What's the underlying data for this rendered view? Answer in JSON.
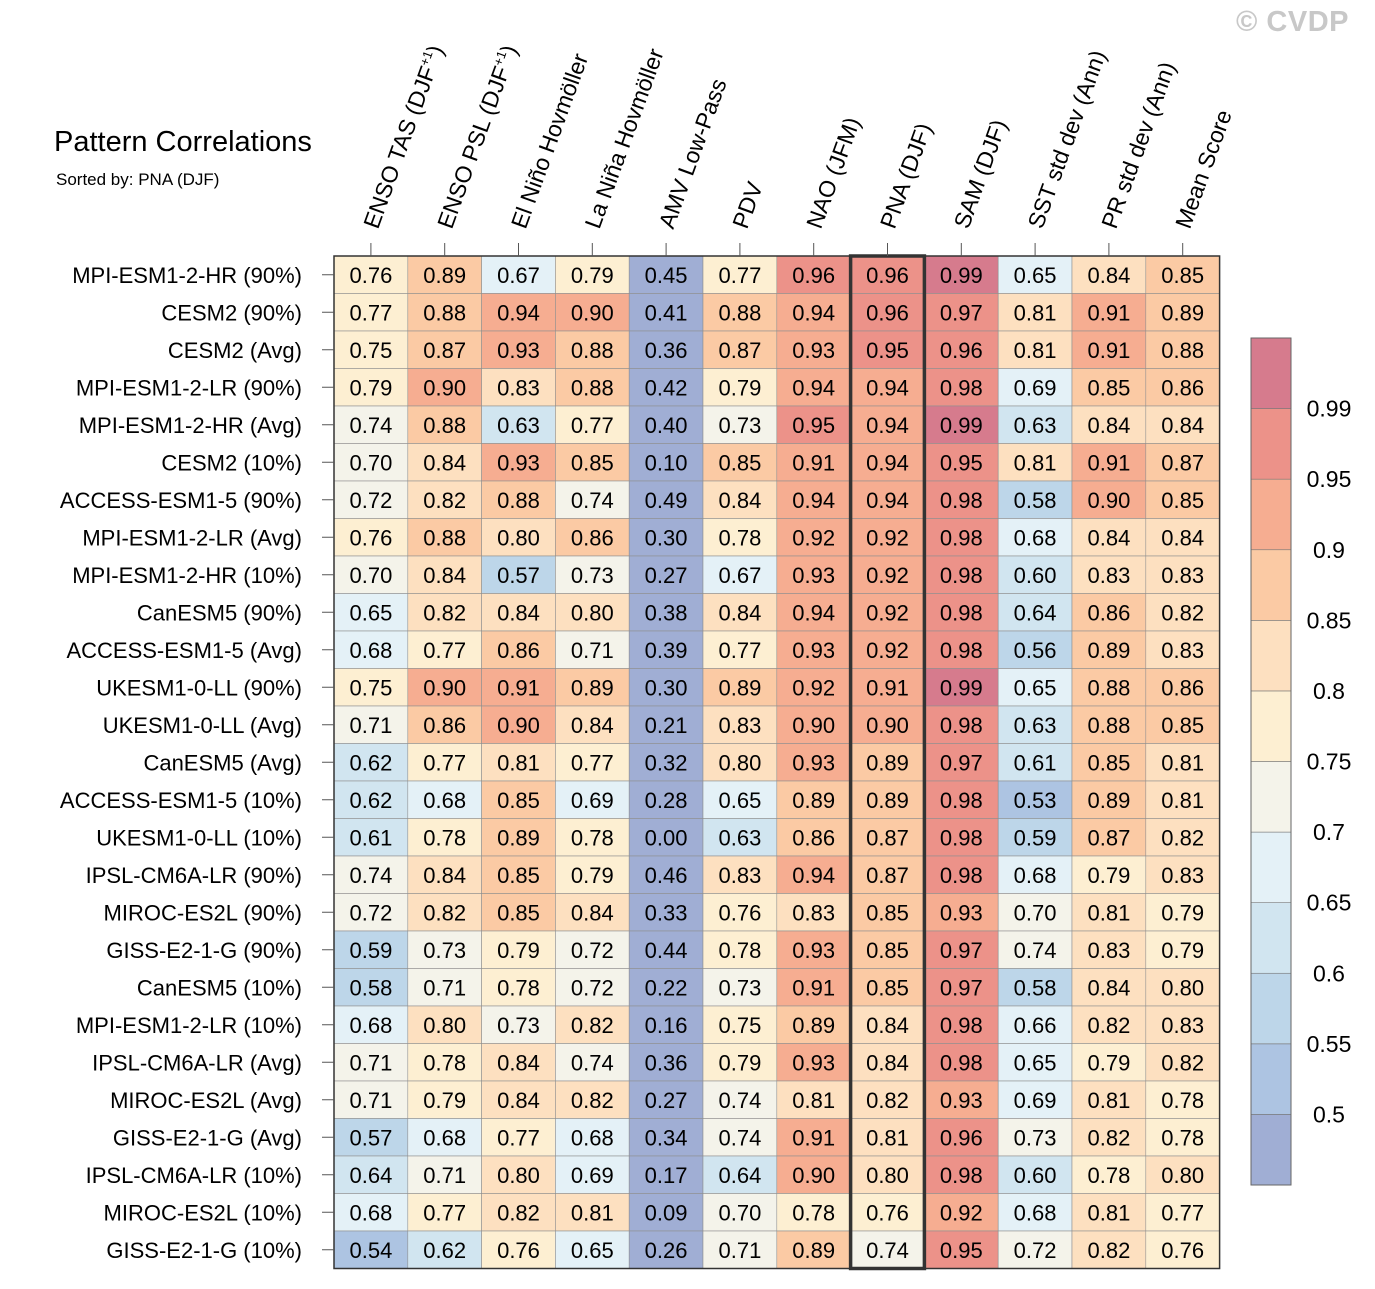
{
  "title": "Pattern Correlations",
  "subtitle": "Sorted by: PNA (DJF)",
  "watermark": "© CVDP",
  "chart_data": {
    "type": "heatmap",
    "title": "Pattern Correlations",
    "subtitle": "Sorted by: PNA (DJF)",
    "columns": [
      {
        "text": "ENSO TAS (DJF",
        "sup": "+1",
        "suffix": ")"
      },
      {
        "text": "ENSO PSL (DJF",
        "sup": "+1",
        "suffix": ")"
      },
      {
        "text": "El Niño Hovmöller"
      },
      {
        "text": "La Niña Hovmöller"
      },
      {
        "text": "AMV Low-Pass"
      },
      {
        "text": "PDV"
      },
      {
        "text": "NAO (JFM)"
      },
      {
        "text": "PNA (DJF)"
      },
      {
        "text": "SAM (DJF)"
      },
      {
        "text": "SST std dev (Ann)"
      },
      {
        "text": "PR std dev (Ann)"
      },
      {
        "text": "Mean Score"
      }
    ],
    "highlighted_column": "PNA (DJF)",
    "rows": [
      "MPI-ESM1-2-HR (90%)",
      "CESM2 (90%)",
      "CESM2 (Avg)",
      "MPI-ESM1-2-LR (90%)",
      "MPI-ESM1-2-HR (Avg)",
      "CESM2 (10%)",
      "ACCESS-ESM1-5 (90%)",
      "MPI-ESM1-2-LR (Avg)",
      "MPI-ESM1-2-HR (10%)",
      "CanESM5 (90%)",
      "ACCESS-ESM1-5 (Avg)",
      "UKESM1-0-LL (90%)",
      "UKESM1-0-LL (Avg)",
      "CanESM5 (Avg)",
      "ACCESS-ESM1-5 (10%)",
      "UKESM1-0-LL (10%)",
      "IPSL-CM6A-LR (90%)",
      "MIROC-ES2L (90%)",
      "GISS-E2-1-G (90%)",
      "CanESM5 (10%)",
      "MPI-ESM1-2-LR (10%)",
      "IPSL-CM6A-LR (Avg)",
      "MIROC-ES2L (Avg)",
      "GISS-E2-1-G (Avg)",
      "IPSL-CM6A-LR (10%)",
      "MIROC-ES2L (10%)",
      "GISS-E2-1-G (10%)"
    ],
    "values": [
      [
        "0.76",
        "0.89",
        "0.67",
        "0.79",
        "0.45",
        "0.77",
        "0.96",
        "0.96",
        "0.99",
        "0.65",
        "0.84",
        "0.85"
      ],
      [
        "0.77",
        "0.88",
        "0.94",
        "0.90",
        "0.41",
        "0.88",
        "0.94",
        "0.96",
        "0.97",
        "0.81",
        "0.91",
        "0.89"
      ],
      [
        "0.75",
        "0.87",
        "0.93",
        "0.88",
        "0.36",
        "0.87",
        "0.93",
        "0.95",
        "0.96",
        "0.81",
        "0.91",
        "0.88"
      ],
      [
        "0.79",
        "0.90",
        "0.83",
        "0.88",
        "0.42",
        "0.79",
        "0.94",
        "0.94",
        "0.98",
        "0.69",
        "0.85",
        "0.86"
      ],
      [
        "0.74",
        "0.88",
        "0.63",
        "0.77",
        "0.40",
        "0.73",
        "0.95",
        "0.94",
        "0.99",
        "0.63",
        "0.84",
        "0.84"
      ],
      [
        "0.70",
        "0.84",
        "0.93",
        "0.85",
        "0.10",
        "0.85",
        "0.91",
        "0.94",
        "0.95",
        "0.81",
        "0.91",
        "0.87"
      ],
      [
        "0.72",
        "0.82",
        "0.88",
        "0.74",
        "0.49",
        "0.84",
        "0.94",
        "0.94",
        "0.98",
        "0.58",
        "0.90",
        "0.85"
      ],
      [
        "0.76",
        "0.88",
        "0.80",
        "0.86",
        "0.30",
        "0.78",
        "0.92",
        "0.92",
        "0.98",
        "0.68",
        "0.84",
        "0.84"
      ],
      [
        "0.70",
        "0.84",
        "0.57",
        "0.73",
        "0.27",
        "0.67",
        "0.93",
        "0.92",
        "0.98",
        "0.60",
        "0.83",
        "0.83"
      ],
      [
        "0.65",
        "0.82",
        "0.84",
        "0.80",
        "0.38",
        "0.84",
        "0.94",
        "0.92",
        "0.98",
        "0.64",
        "0.86",
        "0.82"
      ],
      [
        "0.68",
        "0.77",
        "0.86",
        "0.71",
        "0.39",
        "0.77",
        "0.93",
        "0.92",
        "0.98",
        "0.56",
        "0.89",
        "0.83"
      ],
      [
        "0.75",
        "0.90",
        "0.91",
        "0.89",
        "0.30",
        "0.89",
        "0.92",
        "0.91",
        "0.99",
        "0.65",
        "0.88",
        "0.86"
      ],
      [
        "0.71",
        "0.86",
        "0.90",
        "0.84",
        "0.21",
        "0.83",
        "0.90",
        "0.90",
        "0.98",
        "0.63",
        "0.88",
        "0.85"
      ],
      [
        "0.62",
        "0.77",
        "0.81",
        "0.77",
        "0.32",
        "0.80",
        "0.93",
        "0.89",
        "0.97",
        "0.61",
        "0.85",
        "0.81"
      ],
      [
        "0.62",
        "0.68",
        "0.85",
        "0.69",
        "0.28",
        "0.65",
        "0.89",
        "0.89",
        "0.98",
        "0.53",
        "0.89",
        "0.81"
      ],
      [
        "0.61",
        "0.78",
        "0.89",
        "0.78",
        "0.00",
        "0.63",
        "0.86",
        "0.87",
        "0.98",
        "0.59",
        "0.87",
        "0.82"
      ],
      [
        "0.74",
        "0.84",
        "0.85",
        "0.79",
        "0.46",
        "0.83",
        "0.94",
        "0.87",
        "0.98",
        "0.68",
        "0.79",
        "0.83"
      ],
      [
        "0.72",
        "0.82",
        "0.85",
        "0.84",
        "0.33",
        "0.76",
        "0.83",
        "0.85",
        "0.93",
        "0.70",
        "0.81",
        "0.79"
      ],
      [
        "0.59",
        "0.73",
        "0.79",
        "0.72",
        "0.44",
        "0.78",
        "0.93",
        "0.85",
        "0.97",
        "0.74",
        "0.83",
        "0.79"
      ],
      [
        "0.58",
        "0.71",
        "0.78",
        "0.72",
        "0.22",
        "0.73",
        "0.91",
        "0.85",
        "0.97",
        "0.58",
        "0.84",
        "0.80"
      ],
      [
        "0.68",
        "0.80",
        "0.73",
        "0.82",
        "0.16",
        "0.75",
        "0.89",
        "0.84",
        "0.98",
        "0.66",
        "0.82",
        "0.83"
      ],
      [
        "0.71",
        "0.78",
        "0.84",
        "0.74",
        "0.36",
        "0.79",
        "0.93",
        "0.84",
        "0.98",
        "0.65",
        "0.79",
        "0.82"
      ],
      [
        "0.71",
        "0.79",
        "0.84",
        "0.82",
        "0.27",
        "0.74",
        "0.81",
        "0.82",
        "0.93",
        "0.69",
        "0.81",
        "0.78"
      ],
      [
        "0.57",
        "0.68",
        "0.77",
        "0.68",
        "0.34",
        "0.74",
        "0.91",
        "0.81",
        "0.96",
        "0.73",
        "0.82",
        "0.78"
      ],
      [
        "0.64",
        "0.71",
        "0.80",
        "0.69",
        "0.17",
        "0.64",
        "0.90",
        "0.80",
        "0.98",
        "0.60",
        "0.78",
        "0.80"
      ],
      [
        "0.68",
        "0.77",
        "0.82",
        "0.81",
        "0.09",
        "0.70",
        "0.78",
        "0.76",
        "0.92",
        "0.68",
        "0.81",
        "0.77"
      ],
      [
        "0.54",
        "0.62",
        "0.76",
        "0.65",
        "0.26",
        "0.71",
        "0.89",
        "0.74",
        "0.95",
        "0.72",
        "0.82",
        "0.76"
      ]
    ],
    "colorbar": {
      "levels": [
        0.5,
        0.55,
        0.6,
        0.65,
        0.7,
        0.75,
        0.8,
        0.85,
        0.9,
        0.95,
        0.99
      ],
      "labels": [
        "0.5",
        "0.55",
        "0.6",
        "0.65",
        "0.7",
        "0.75",
        "0.8",
        "0.85",
        "0.9",
        "0.95",
        "0.99"
      ],
      "colors": [
        "#a0aed4",
        "#adc4e2",
        "#bdd6e9",
        "#d1e5f0",
        "#e4f1f7",
        "#f4f3ea",
        "#fdefd2",
        "#fde0c0",
        "#fbcaa4",
        "#f6ad91",
        "#ec9289",
        "#d67b8d"
      ]
    }
  }
}
